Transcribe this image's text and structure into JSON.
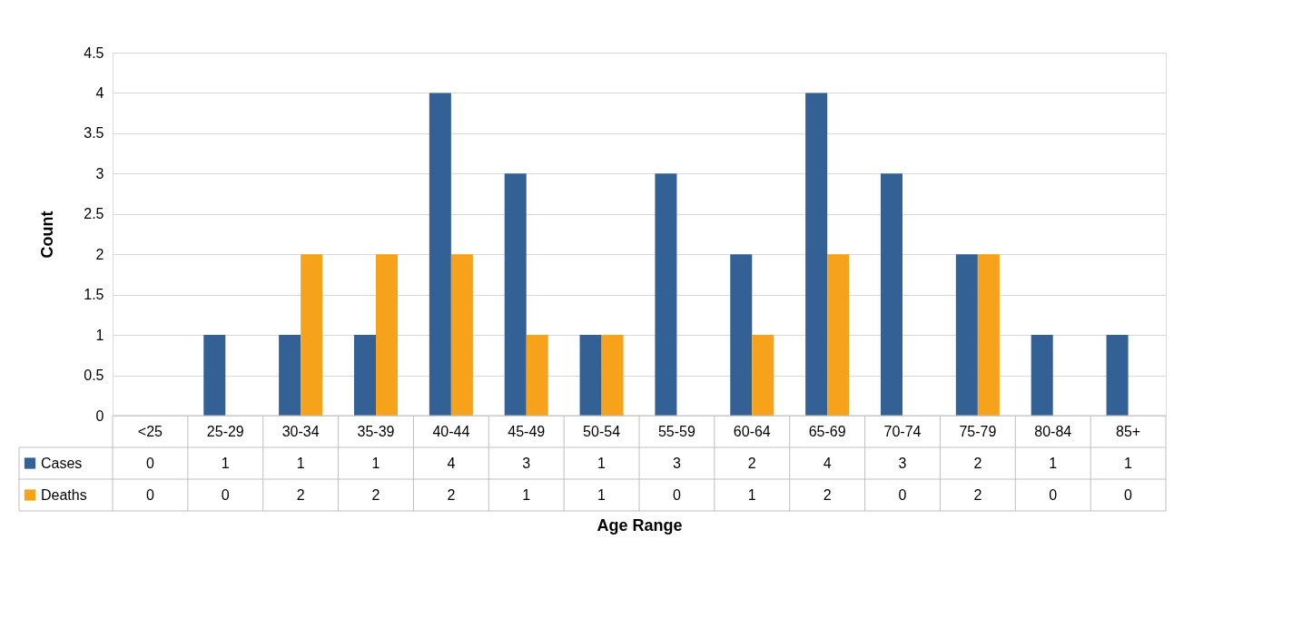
{
  "chart_data": {
    "type": "bar",
    "xlabel": "Age Range",
    "ylabel": "Count",
    "categories": [
      "<25",
      "25-29",
      "30-34",
      "35-39",
      "40-44",
      "45-49",
      "50-54",
      "55-59",
      "60-64",
      "65-69",
      "70-74",
      "75-79",
      "80-84",
      "85+"
    ],
    "series": [
      {
        "name": "Cases",
        "color": "#336196",
        "values": [
          0,
          1,
          1,
          1,
          4,
          3,
          1,
          3,
          2,
          4,
          3,
          2,
          1,
          1
        ]
      },
      {
        "name": "Deaths",
        "color": "#f7a21b",
        "values": [
          0,
          0,
          2,
          2,
          2,
          1,
          1,
          0,
          1,
          2,
          0,
          2,
          0,
          0
        ]
      }
    ],
    "ylim": [
      0,
      4.5
    ],
    "yticks": [
      0,
      0.5,
      1,
      1.5,
      2,
      2.5,
      3,
      3.5,
      4,
      4.5
    ],
    "grid": "y",
    "legend": "bottom",
    "data_labels": true
  }
}
